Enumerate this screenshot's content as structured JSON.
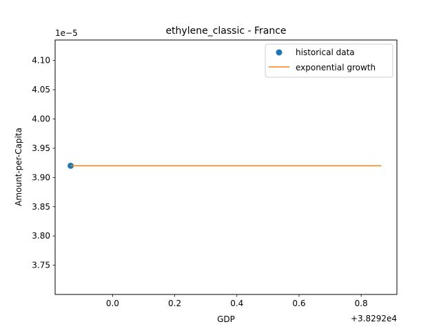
{
  "chart_data": {
    "type": "line",
    "title": "ethylene_classic - France",
    "xlabel": "GDP",
    "ylabel": "Amount-per-Capita",
    "x_offset_text": "+3.8292e4",
    "y_scale_text": "1e−5",
    "xlim": [
      -0.185,
      0.915
    ],
    "ylim": [
      3.7,
      4.135
    ],
    "x_ticks": [
      0.0,
      0.2,
      0.4,
      0.6,
      0.8
    ],
    "x_tick_labels": [
      "0.0",
      "0.2",
      "0.4",
      "0.6",
      "0.8"
    ],
    "y_ticks": [
      3.75,
      3.8,
      3.85,
      3.9,
      3.95,
      4.0,
      4.05,
      4.1
    ],
    "y_tick_labels": [
      "3.75",
      "3.80",
      "3.85",
      "3.90",
      "3.95",
      "4.00",
      "4.05",
      "4.10"
    ],
    "grid": false,
    "legend_position": "top-right",
    "series": [
      {
        "name": "historical data",
        "kind": "scatter",
        "color": "#1f77b4",
        "points": [
          [
            -0.135,
            3.92
          ]
        ]
      },
      {
        "name": "exponential growth",
        "kind": "line",
        "color": "#ff7f0e",
        "points": [
          [
            -0.135,
            3.92
          ],
          [
            0.865,
            3.92
          ]
        ]
      }
    ]
  }
}
